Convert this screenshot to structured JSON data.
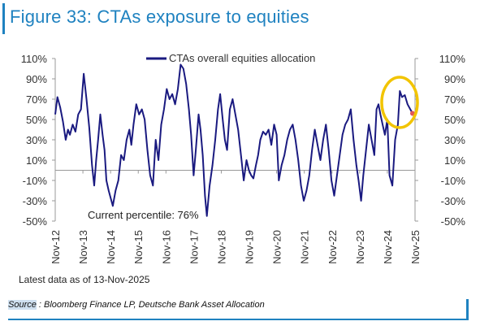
{
  "figure": {
    "title": "Figure 33: CTAs exposure to equities",
    "note": "Latest data as of 13-Nov-2025",
    "source_label": "Source",
    "source_text": " : Bloomberg Finance LP, Deutsche Bank Asset Allocation",
    "annotation": "Current percentile: 76%"
  },
  "colors": {
    "title": "#1f82c0",
    "series": "#1a1a80",
    "highlight_circle": "#f2c400",
    "latest_point": "#e05a5a",
    "axis": "#999999",
    "frame": "#1f82c0"
  },
  "chart_data": {
    "type": "line",
    "title": "",
    "xlabel": "",
    "ylabel": "",
    "ylim": [
      -50,
      110
    ],
    "y_ticks": [
      "110%",
      "90%",
      "70%",
      "50%",
      "30%",
      "10%",
      "-10%",
      "-30%",
      "-50%"
    ],
    "y_tick_values": [
      110,
      90,
      70,
      50,
      30,
      10,
      -10,
      -30,
      -50
    ],
    "x_ticks": [
      "Nov-12",
      "Nov-13",
      "Nov-14",
      "Nov-15",
      "Nov-16",
      "Nov-17",
      "Nov-18",
      "Nov-19",
      "Nov-20",
      "Nov-21",
      "Nov-22",
      "Nov-23",
      "Nov-24",
      "Nov-25"
    ],
    "x_tick_values": [
      2012.87,
      2013.87,
      2014.87,
      2015.87,
      2016.87,
      2017.87,
      2018.87,
      2019.87,
      2020.87,
      2021.87,
      2022.87,
      2023.87,
      2024.87,
      2025.87
    ],
    "xlim": [
      2012.87,
      2025.87
    ],
    "legend": "top-center",
    "grid": false,
    "series": [
      {
        "name": "CTAs overall equities allocation",
        "x": [
          2012.87,
          2012.95,
          2013.05,
          2013.15,
          2013.25,
          2013.33,
          2013.4,
          2013.5,
          2013.6,
          2013.7,
          2013.8,
          2013.9,
          2014.0,
          2014.1,
          2014.2,
          2014.28,
          2014.35,
          2014.42,
          2014.5,
          2014.58,
          2014.65,
          2014.72,
          2014.8,
          2014.88,
          2014.95,
          2015.05,
          2015.15,
          2015.25,
          2015.35,
          2015.45,
          2015.55,
          2015.62,
          2015.7,
          2015.8,
          2015.9,
          2016.0,
          2016.1,
          2016.2,
          2016.3,
          2016.4,
          2016.5,
          2016.6,
          2016.7,
          2016.8,
          2016.9,
          2017.0,
          2017.1,
          2017.2,
          2017.3,
          2017.4,
          2017.5,
          2017.6,
          2017.7,
          2017.78,
          2017.87,
          2017.95,
          2018.05,
          2018.12,
          2018.2,
          2018.28,
          2018.35,
          2018.45,
          2018.55,
          2018.65,
          2018.75,
          2018.83,
          2018.92,
          2019.0,
          2019.08,
          2019.18,
          2019.28,
          2019.38,
          2019.48,
          2019.58,
          2019.68,
          2019.78,
          2019.87,
          2019.95,
          2020.03,
          2020.12,
          2020.2,
          2020.28,
          2020.38,
          2020.48,
          2020.58,
          2020.68,
          2020.78,
          2020.87,
          2020.95,
          2021.05,
          2021.15,
          2021.25,
          2021.35,
          2021.45,
          2021.55,
          2021.65,
          2021.75,
          2021.85,
          2021.95,
          2022.05,
          2022.15,
          2022.25,
          2022.35,
          2022.45,
          2022.55,
          2022.65,
          2022.75,
          2022.85,
          2022.95,
          2023.05,
          2023.15,
          2023.25,
          2023.35,
          2023.45,
          2023.55,
          2023.65,
          2023.75,
          2023.83,
          2023.92,
          2024.0,
          2024.1,
          2024.2,
          2024.3,
          2024.4,
          2024.48,
          2024.55,
          2024.62,
          2024.7,
          2024.78,
          2024.87,
          2024.95,
          2025.05,
          2025.15,
          2025.25,
          2025.32,
          2025.4,
          2025.5,
          2025.6,
          2025.7,
          2025.78
        ],
        "values": [
          55,
          72,
          62,
          48,
          30,
          40,
          35,
          45,
          38,
          55,
          60,
          95,
          70,
          42,
          5,
          -15,
          10,
          30,
          55,
          35,
          20,
          -10,
          -20,
          -28,
          -35,
          -20,
          -10,
          15,
          10,
          30,
          40,
          25,
          45,
          65,
          55,
          60,
          50,
          20,
          -5,
          -15,
          30,
          10,
          45,
          60,
          80,
          70,
          75,
          65,
          80,
          104,
          100,
          85,
          60,
          35,
          -5,
          20,
          55,
          40,
          15,
          -25,
          -45,
          -15,
          5,
          30,
          60,
          75,
          50,
          30,
          20,
          60,
          70,
          55,
          40,
          15,
          -10,
          10,
          0,
          -5,
          -8,
          5,
          15,
          30,
          38,
          35,
          40,
          25,
          45,
          35,
          -10,
          5,
          15,
          30,
          40,
          45,
          30,
          10,
          -15,
          -30,
          -20,
          -5,
          20,
          40,
          25,
          10,
          30,
          45,
          20,
          -10,
          -25,
          -5,
          15,
          35,
          45,
          50,
          60,
          30,
          5,
          -10,
          -30,
          -5,
          20,
          45,
          30,
          15,
          60,
          65,
          55,
          45,
          35,
          50,
          -5,
          -15,
          30,
          45,
          78,
          72,
          74,
          65,
          60,
          56
        ]
      }
    ]
  }
}
